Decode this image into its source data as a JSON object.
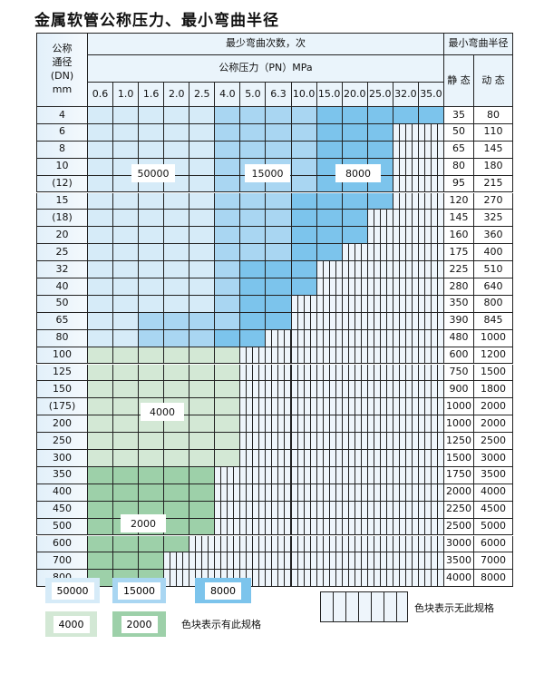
{
  "title": "金属软管公称压力、最小弯曲半径",
  "header": {
    "dn_label": "公称\n通径\n(DN)\nmm",
    "cycles_label": "最少弯曲次数，次",
    "pressure_label": "公称压力（PN）MPa",
    "radius_label": "最小弯曲半径",
    "static_label": "静 态",
    "dynamic_label": "动 态",
    "pressures": [
      "0.6",
      "1.0",
      "1.6",
      "2.0",
      "2.5",
      "4.0",
      "5.0",
      "6.3",
      "10.0",
      "15.0",
      "20.0",
      "25.0",
      "32.0",
      "35.0"
    ]
  },
  "rows": [
    {
      "dn": "4",
      "static": "35",
      "dynamic": "80",
      "cells": "LLLLLMMMMDDDDD"
    },
    {
      "dn": "6",
      "static": "50",
      "dynamic": "110",
      "cells": "LLLLLMMMMDDD"
    },
    {
      "dn": "8",
      "static": "65",
      "dynamic": "145",
      "cells": "LLLLLMMMMDDD"
    },
    {
      "dn": "10",
      "static": "80",
      "dynamic": "180",
      "cells": "LLLLLMMMMDDD"
    },
    {
      "dn": "(12)",
      "static": "95",
      "dynamic": "215",
      "cells": "LLLLLMMMMDDD"
    },
    {
      "dn": "15",
      "static": "120",
      "dynamic": "270",
      "cells": "LLLLLMMMDDDD"
    },
    {
      "dn": "(18)",
      "static": "145",
      "dynamic": "325",
      "cells": "LLLLLMMMDDD"
    },
    {
      "dn": "20",
      "static": "160",
      "dynamic": "360",
      "cells": "LLLLLMMMDDD"
    },
    {
      "dn": "25",
      "static": "175",
      "dynamic": "400",
      "cells": "LLLLLMMMDD"
    },
    {
      "dn": "32",
      "static": "225",
      "dynamic": "510",
      "cells": "LLLLLMDDD"
    },
    {
      "dn": "40",
      "static": "280",
      "dynamic": "640",
      "cells": "LLLLLMDDD"
    },
    {
      "dn": "50",
      "static": "350",
      "dynamic": "800",
      "cells": "LLLLLMDD"
    },
    {
      "dn": "65",
      "static": "390",
      "dynamic": "845",
      "cells": "LLMMMMDD"
    },
    {
      "dn": "80",
      "static": "480",
      "dynamic": "1000",
      "cells": "LLMMMDD"
    },
    {
      "dn": "100",
      "static": "600",
      "dynamic": "1200",
      "cells": "GGGGGG"
    },
    {
      "dn": "125",
      "static": "750",
      "dynamic": "1500",
      "cells": "GGGGGG"
    },
    {
      "dn": "150",
      "static": "900",
      "dynamic": "1800",
      "cells": "GGGGGG"
    },
    {
      "dn": "(175)",
      "static": "1000",
      "dynamic": "2000",
      "cells": "GGGGGG"
    },
    {
      "dn": "200",
      "static": "1000",
      "dynamic": "2000",
      "cells": "GGGGGG"
    },
    {
      "dn": "250",
      "static": "1250",
      "dynamic": "2500",
      "cells": "GGGGGG"
    },
    {
      "dn": "300",
      "static": "1500",
      "dynamic": "3000",
      "cells": "GGGGGG"
    },
    {
      "dn": "350",
      "static": "1750",
      "dynamic": "3500",
      "cells": "HHHHH"
    },
    {
      "dn": "400",
      "static": "2000",
      "dynamic": "4000",
      "cells": "HHHHH"
    },
    {
      "dn": "450",
      "static": "2250",
      "dynamic": "4500",
      "cells": "HHHHH"
    },
    {
      "dn": "500",
      "static": "2500",
      "dynamic": "5000",
      "cells": "HHHHH"
    },
    {
      "dn": "600",
      "static": "3000",
      "dynamic": "6000",
      "cells": "HHHH"
    },
    {
      "dn": "700",
      "static": "3500",
      "dynamic": "7000",
      "cells": "HHH"
    },
    {
      "dn": "800",
      "static": "4000",
      "dynamic": "8000",
      "cells": "HHH"
    }
  ],
  "region_labels": {
    "blue_light": "50000",
    "blue_mid": "15000",
    "blue_dark": "8000",
    "green_light": "4000",
    "green_dark": "2000"
  },
  "legend": {
    "items": [
      {
        "label": "50000",
        "color": "#d6ebf8"
      },
      {
        "label": "15000",
        "color": "#a9d6f2"
      },
      {
        "label": "8000",
        "color": "#7cc4ec"
      },
      {
        "label": "4000",
        "color": "#d3e8d5"
      },
      {
        "label": "2000",
        "color": "#9dd0a9"
      }
    ],
    "has_spec_text": "色块表示有此规格",
    "no_spec_text": "色块表示无此规格"
  }
}
